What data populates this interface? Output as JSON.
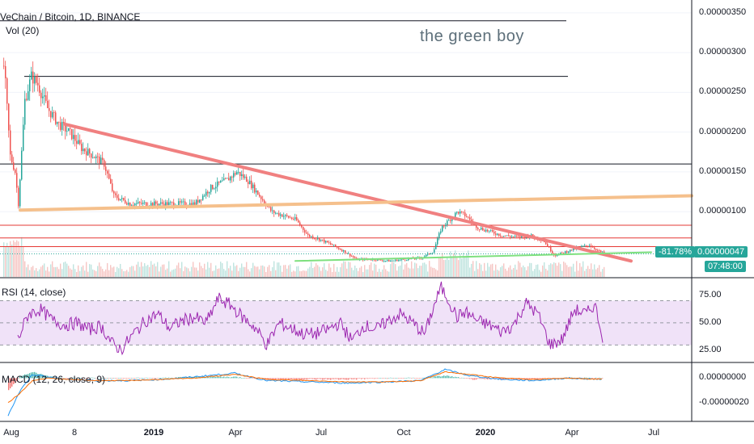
{
  "header": {
    "symbol_title": "VeChain / Bitcoin, 1D, BINANCE",
    "volume_label": "Vol (20)"
  },
  "annotation": "the green boy",
  "price_tags": {
    "change_pct": "-81.78%",
    "last_price": "0.00000047",
    "countdown": "07:48:00"
  },
  "colors": {
    "up": "#26a69a",
    "down": "#ef5350",
    "downtrend": "#f08080",
    "support_orange": "#f5c08c",
    "support_green": "#7ee07e",
    "rsi": "#9c27b0",
    "rsi_band": "#e9d5f5",
    "macd_line": "#2196f3",
    "signal_line": "#ff6d00"
  },
  "chart_data": [
    {
      "type": "line",
      "name": "price",
      "y_axis": {
        "ticks": [
          "0.00000350",
          "0.00000300",
          "0.00000250",
          "0.00000200",
          "0.00000150",
          "0.00000100",
          "0.00000050"
        ],
        "ylim": [
          1.8e-07,
          3.6e-06
        ]
      },
      "x_axis": {
        "ticks": [
          {
            "label": "Aug",
            "bold": false
          },
          {
            "label": "8",
            "bold": false
          },
          {
            "label": "2019",
            "bold": true
          },
          {
            "label": "Apr",
            "bold": false
          },
          {
            "label": "Jul",
            "bold": false
          },
          {
            "label": "Oct",
            "bold": false
          },
          {
            "label": "2020",
            "bold": true
          },
          {
            "label": "Apr",
            "bold": false
          },
          {
            "label": "Jul",
            "bold": false
          }
        ]
      },
      "close_series": [
        [
          0,
          3.3e-06
        ],
        [
          6,
          2.6e-06
        ],
        [
          12,
          1.7e-06
        ],
        [
          18,
          1.5e-06
        ],
        [
          22,
          1.1e-06
        ],
        [
          30,
          2.4e-06
        ],
        [
          38,
          2.7e-06
        ],
        [
          46,
          2.6e-06
        ],
        [
          58,
          2.3e-06
        ],
        [
          72,
          2.1e-06
        ],
        [
          85,
          2e-06
        ],
        [
          100,
          1.8e-06
        ],
        [
          115,
          1.7e-06
        ],
        [
          128,
          1.6e-06
        ],
        [
          140,
          1.2e-06
        ],
        [
          160,
          1.1e-06
        ],
        [
          180,
          1.1e-06
        ],
        [
          200,
          1.1e-06
        ],
        [
          220,
          1.1e-06
        ],
        [
          240,
          1.1e-06
        ],
        [
          260,
          1.3e-06
        ],
        [
          280,
          1.4e-06
        ],
        [
          292,
          1.5e-06
        ],
        [
          305,
          1.4e-06
        ],
        [
          320,
          1.2e-06
        ],
        [
          335,
          1e-06
        ],
        [
          350,
          9.5e-07
        ],
        [
          365,
          9e-07
        ],
        [
          380,
          7e-07
        ],
        [
          395,
          6.5e-07
        ],
        [
          410,
          5.8e-07
        ],
        [
          425,
          5e-07
        ],
        [
          440,
          4e-07
        ],
        [
          460,
          4e-07
        ],
        [
          480,
          3.8e-07
        ],
        [
          500,
          4e-07
        ],
        [
          520,
          4.2e-07
        ],
        [
          535,
          5e-07
        ],
        [
          545,
          8e-07
        ],
        [
          555,
          9e-07
        ],
        [
          565,
          1e-06
        ],
        [
          575,
          9.5e-07
        ],
        [
          590,
          8e-07
        ],
        [
          605,
          7.5e-07
        ],
        [
          620,
          7e-07
        ],
        [
          640,
          6.8e-07
        ],
        [
          655,
          7e-07
        ],
        [
          670,
          6.5e-07
        ],
        [
          685,
          4.5e-07
        ],
        [
          700,
          5e-07
        ],
        [
          715,
          5.5e-07
        ],
        [
          728,
          5.8e-07
        ],
        [
          740,
          5e-07
        ],
        [
          748,
          4.7e-07
        ]
      ],
      "horizontal_levels": [
        3.4e-06,
        2.7e-06,
        1.6e-06,
        8.3e-07,
        6.7e-07,
        5.6e-07
      ],
      "trend_lines": [
        {
          "name": "downtrend",
          "points": [
            [
              80,
              2.1e-06
            ],
            [
              780,
              3.8e-07
            ]
          ]
        },
        {
          "name": "orange-support",
          "points": [
            [
              25,
              1.02e-06
            ],
            [
              855,
              1.2e-06
            ]
          ]
        },
        {
          "name": "green-support",
          "points": [
            [
              365,
              3.8e-07
            ],
            [
              805,
              4.9e-07
            ]
          ]
        }
      ]
    },
    {
      "type": "line",
      "name": "RSI (14, close)",
      "label": "RSI (14, close)",
      "y_ticks": [
        "75.00",
        "50.00",
        "25.00"
      ],
      "ylim": [
        15,
        90
      ],
      "band": [
        30,
        70
      ],
      "values": [
        [
          22,
          35
        ],
        [
          35,
          58
        ],
        [
          50,
          62
        ],
        [
          65,
          52
        ],
        [
          80,
          48
        ],
        [
          95,
          50
        ],
        [
          110,
          44
        ],
        [
          125,
          47
        ],
        [
          140,
          30
        ],
        [
          150,
          26
        ],
        [
          165,
          40
        ],
        [
          180,
          52
        ],
        [
          195,
          58
        ],
        [
          210,
          45
        ],
        [
          225,
          52
        ],
        [
          240,
          55
        ],
        [
          255,
          50
        ],
        [
          270,
          72
        ],
        [
          285,
          66
        ],
        [
          300,
          55
        ],
        [
          315,
          46
        ],
        [
          330,
          30
        ],
        [
          345,
          50
        ],
        [
          360,
          45
        ],
        [
          375,
          40
        ],
        [
          390,
          40
        ],
        [
          405,
          44
        ],
        [
          420,
          50
        ],
        [
          435,
          34
        ],
        [
          450,
          48
        ],
        [
          465,
          44
        ],
        [
          480,
          52
        ],
        [
          495,
          58
        ],
        [
          510,
          50
        ],
        [
          525,
          40
        ],
        [
          535,
          62
        ],
        [
          545,
          82
        ],
        [
          555,
          70
        ],
        [
          565,
          55
        ],
        [
          575,
          60
        ],
        [
          590,
          52
        ],
        [
          605,
          48
        ],
        [
          620,
          42
        ],
        [
          635,
          48
        ],
        [
          650,
          68
        ],
        [
          665,
          58
        ],
        [
          680,
          30
        ],
        [
          695,
          35
        ],
        [
          710,
          62
        ],
        [
          725,
          58
        ],
        [
          735,
          67
        ],
        [
          745,
          38
        ]
      ]
    },
    {
      "type": "line",
      "name": "MACD (12, 26, close, 9)",
      "label": "MACD (12, 26, close, 9)",
      "y_ticks": [
        "0.00000000",
        "-0.00000020"
      ],
      "ylim": [
        -3.5e-07,
        1.2e-07
      ],
      "macd": [
        [
          10,
          -3e-07
        ],
        [
          25,
          -1e-07
        ],
        [
          40,
          3e-08
        ],
        [
          60,
          1e-08
        ],
        [
          80,
          -1e-08
        ],
        [
          120,
          -2e-08
        ],
        [
          160,
          -2e-08
        ],
        [
          200,
          -1e-08
        ],
        [
          240,
          1e-08
        ],
        [
          290,
          4e-08
        ],
        [
          330,
          -2e-08
        ],
        [
          380,
          -3e-08
        ],
        [
          430,
          -4e-08
        ],
        [
          480,
          -3e-08
        ],
        [
          520,
          -2e-08
        ],
        [
          550,
          7e-08
        ],
        [
          580,
          2e-08
        ],
        [
          620,
          -1e-08
        ],
        [
          660,
          -2e-08
        ],
        [
          700,
          0.0
        ],
        [
          745,
          -1e-08
        ]
      ],
      "signal": [
        [
          10,
          -2e-07
        ],
        [
          25,
          -1.2e-07
        ],
        [
          40,
          -2e-08
        ],
        [
          60,
          0.0
        ],
        [
          80,
          -1e-08
        ],
        [
          120,
          -2e-08
        ],
        [
          160,
          -2e-08
        ],
        [
          200,
          -1e-08
        ],
        [
          240,
          0.0
        ],
        [
          290,
          3e-08
        ],
        [
          330,
          -1e-08
        ],
        [
          380,
          -2e-08
        ],
        [
          430,
          -3e-08
        ],
        [
          480,
          -3e-08
        ],
        [
          520,
          -2e-08
        ],
        [
          550,
          5e-08
        ],
        [
          580,
          3e-08
        ],
        [
          620,
          0.0
        ],
        [
          660,
          -1e-08
        ],
        [
          700,
          0.0
        ],
        [
          745,
          -1e-08
        ]
      ]
    }
  ]
}
